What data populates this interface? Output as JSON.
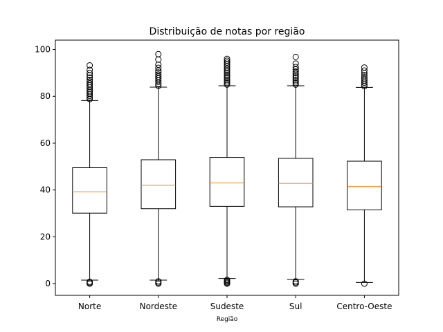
{
  "chart_data": {
    "type": "boxplot",
    "title": "Distribuição de notas por região",
    "xlabel": "Região",
    "ylabel": "",
    "ylim": [
      -5,
      104
    ],
    "yticks": [
      0,
      20,
      40,
      60,
      80,
      100
    ],
    "grid": false,
    "colors": {
      "box": "#000000",
      "median": "#ff7f0e",
      "background": "#ffffff"
    },
    "categories": [
      "Norte",
      "Nordeste",
      "Sudeste",
      "Sul",
      "Centro-Oeste"
    ],
    "boxes": [
      {
        "label": "Norte",
        "whisker_low": 1.5,
        "q1": 30.1,
        "median": 39.2,
        "q3": 49.5,
        "whisker_high": 78.2,
        "outliers_high": [
          78.8,
          79.5,
          80.2,
          81.0,
          81.8,
          82.5,
          83.2,
          84.0,
          84.8,
          85.5,
          86.3,
          87.0,
          88.0,
          89.0,
          90.0,
          91.3,
          93.2
        ],
        "outliers_low": [
          0.0,
          0.4,
          0.8
        ]
      },
      {
        "label": "Nordeste",
        "whisker_low": 1.5,
        "q1": 32.0,
        "median": 42.0,
        "q3": 52.9,
        "whisker_high": 83.9,
        "outliers_high": [
          84.5,
          85.3,
          86.1,
          86.9,
          87.7,
          88.5,
          89.3,
          90.2,
          91.0,
          92.2,
          93.5,
          95.7,
          98.0
        ],
        "outliers_low": [
          0.0,
          0.5,
          1.0
        ]
      },
      {
        "label": "Sudeste",
        "whisker_low": 2.2,
        "q1": 33.0,
        "median": 43.0,
        "q3": 53.9,
        "whisker_high": 84.5,
        "outliers_high": [
          85.0,
          85.7,
          86.4,
          87.1,
          87.8,
          88.5,
          89.2,
          89.9,
          90.6,
          91.3,
          92.0,
          92.8,
          93.6,
          94.4,
          95.2,
          96.0
        ],
        "outliers_low": [
          0.0,
          0.4,
          0.8,
          1.2,
          1.6
        ]
      },
      {
        "label": "Sul",
        "whisker_low": 1.8,
        "q1": 32.8,
        "median": 42.8,
        "q3": 53.5,
        "whisker_high": 84.5,
        "outliers_high": [
          85.0,
          85.7,
          86.4,
          87.1,
          87.8,
          88.5,
          89.2,
          89.9,
          90.6,
          91.5,
          92.5,
          94.0,
          96.8
        ],
        "outliers_low": [
          0.0,
          0.5,
          1.0
        ]
      },
      {
        "label": "Centro-Oeste",
        "whisker_low": 0.5,
        "q1": 31.5,
        "median": 41.5,
        "q3": 52.3,
        "whisker_high": 83.8,
        "outliers_high": [
          84.3,
          85.0,
          85.8,
          86.6,
          87.4,
          88.2,
          89.0,
          90.0,
          91.0,
          92.3
        ],
        "outliers_low": [
          0.0
        ]
      }
    ]
  }
}
